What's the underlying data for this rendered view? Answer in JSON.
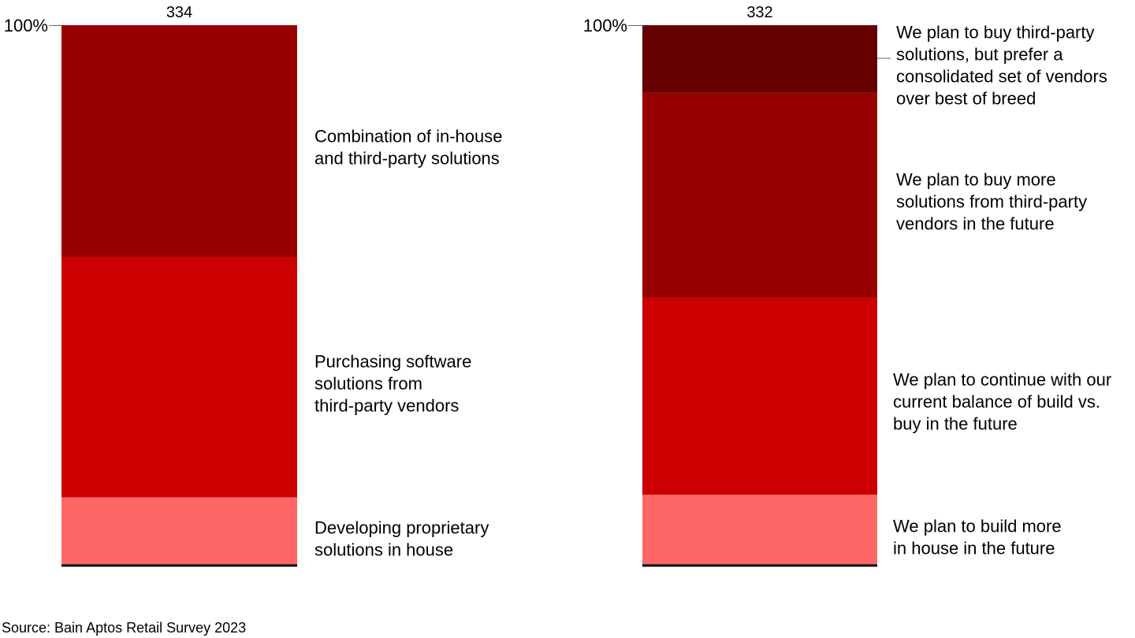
{
  "chart_data": [
    {
      "type": "bar",
      "stacked": true,
      "total_label": "334",
      "ylim": [
        0,
        100
      ],
      "ytick_label": "100%",
      "series": [
        {
          "name": "Developing proprietary solutions in house",
          "value": 12.5,
          "color": "#FF6666"
        },
        {
          "name": "Purchasing software solutions from third-party vendors",
          "value": 44.5,
          "color": "#CC0000"
        },
        {
          "name": "Combination of in-house and third-party solutions",
          "value": 43.0,
          "color": "#990000"
        }
      ]
    },
    {
      "type": "bar",
      "stacked": true,
      "total_label": "332",
      "ylim": [
        0,
        100
      ],
      "ytick_label": "100%",
      "series": [
        {
          "name": "We plan to build more in house in the future",
          "value": 13.0,
          "color": "#FF6666"
        },
        {
          "name": "We plan to continue with our current balance of build vs. buy in the future",
          "value": 36.5,
          "color": "#CC0000"
        },
        {
          "name": "We plan to buy more solutions from third-party vendors in the future",
          "value": 38.0,
          "color": "#990000"
        },
        {
          "name": "We plan to buy third-party solutions, but prefer a consolidated set of vendors over best of breed",
          "value": 12.5,
          "color": "#660000"
        }
      ]
    }
  ],
  "labels": {
    "left": [
      [
        "Developing proprietary",
        "solutions in house"
      ],
      [
        "Purchasing software",
        "solutions from",
        "third-party vendors"
      ],
      [
        "Combination of in-house",
        "and third-party solutions"
      ]
    ],
    "right": [
      [
        "We plan to build more",
        "in house in the future"
      ],
      [
        "We plan to continue with our",
        "current balance of build vs.",
        "buy in the future"
      ],
      [
        "We plan to buy more",
        "solutions from third-party",
        "vendors in the future"
      ],
      [
        "We plan to buy third-party",
        "solutions, but prefer a",
        "consolidated set of vendors",
        "over best of breed"
      ]
    ]
  },
  "source": "Source: Bain Aptos Retail Survey 2023"
}
